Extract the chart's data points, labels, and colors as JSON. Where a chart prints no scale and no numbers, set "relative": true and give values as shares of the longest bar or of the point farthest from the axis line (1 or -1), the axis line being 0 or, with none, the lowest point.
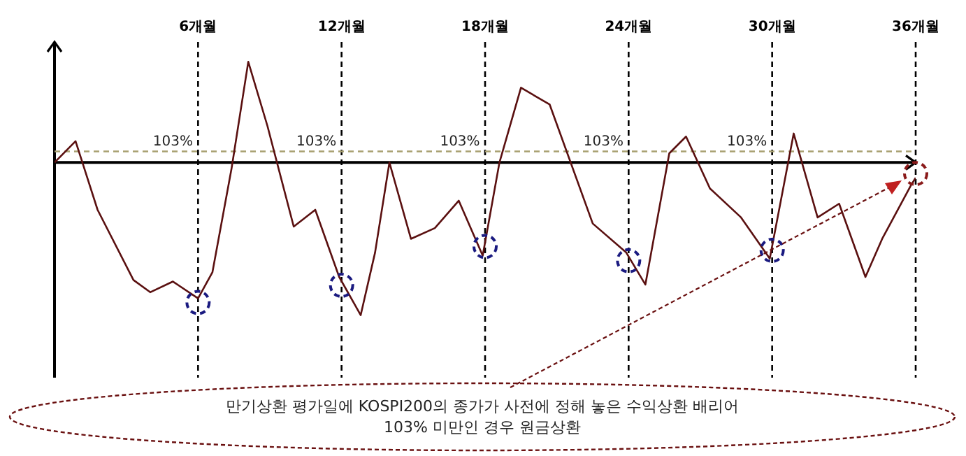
{
  "chart_data": {
    "type": "line",
    "relative": true,
    "xlim": [
      0,
      36
    ],
    "xticks": [
      {
        "value": 6,
        "label": "6개월"
      },
      {
        "value": 12,
        "label": "12개월"
      },
      {
        "value": 18,
        "label": "18개월"
      },
      {
        "value": 24,
        "label": "24개월"
      },
      {
        "value": 30,
        "label": "30개월"
      },
      {
        "value": 36,
        "label": "36개월"
      }
    ],
    "grid": "x",
    "x": [
      0,
      0.88,
      1.8,
      3.3,
      4.0,
      4.95,
      6.0,
      6.6,
      7.4,
      8.1,
      8.9,
      10.0,
      10.9,
      11.9,
      12.8,
      13.4,
      14.0,
      14.9,
      15.9,
      16.9,
      17.9,
      18.6,
      19.5,
      20.7,
      22.5,
      23.9,
      24.7,
      25.7,
      26.4,
      27.4,
      28.7,
      29.9,
      30.9,
      31.9,
      32.8,
      33.9,
      34.6,
      35.8,
      36
    ],
    "series": [
      {
        "color": "#5a1010",
        "values": [
          0,
          0.14,
          -0.31,
          -0.77,
          -0.85,
          -0.78,
          -0.89,
          -0.72,
          -0.04,
          0.66,
          0.24,
          -0.42,
          -0.31,
          -0.75,
          -1,
          -0.59,
          0,
          -0.5,
          -0.43,
          -0.25,
          -0.61,
          0,
          0.49,
          0.38,
          -0.4,
          -0.59,
          -0.8,
          0.06,
          0.17,
          -0.17,
          -0.36,
          -0.63,
          0.19,
          -0.36,
          -0.27,
          -0.75,
          -0.5,
          -0.15,
          -0.1
        ]
      }
    ],
    "ref_lines": [
      {
        "axis": "y",
        "value": 0.073,
        "color": "#a8a070",
        "line_style": "dashed"
      }
    ],
    "annotations": [
      "103%",
      "103%",
      "103%",
      "103%",
      "103%",
      "만기상환 평가일에 KOSPI200의 종가가 사전에 정해 놓은 수익상환 배리어",
      "103% 미만인 경우 원금상환"
    ]
  }
}
